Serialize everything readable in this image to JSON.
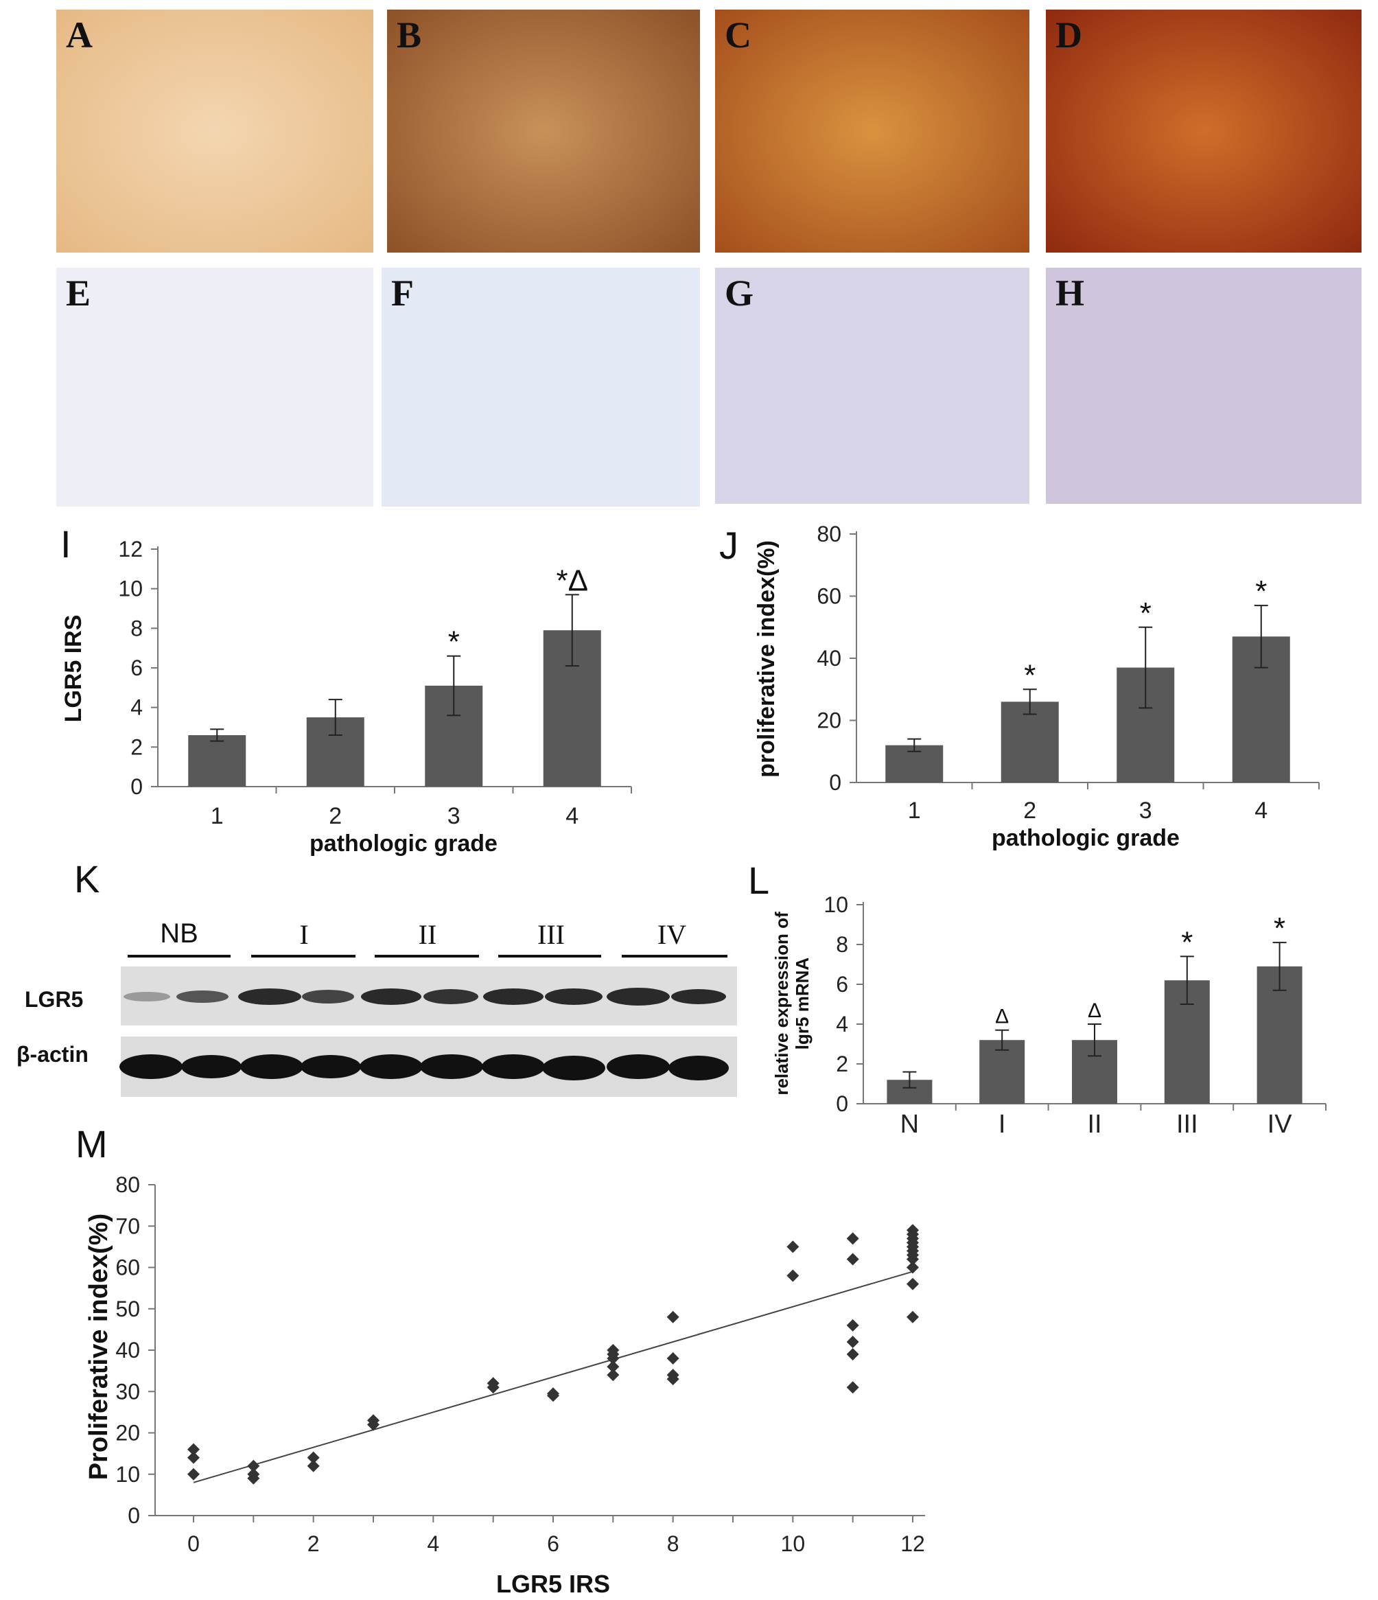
{
  "micrographs": {
    "top_row": [
      {
        "label": "A"
      },
      {
        "label": "B"
      },
      {
        "label": "C"
      },
      {
        "label": "D"
      }
    ],
    "bottom_row": [
      {
        "label": "E"
      },
      {
        "label": "F"
      },
      {
        "label": "G"
      },
      {
        "label": "H"
      }
    ]
  },
  "panel_letters": {
    "i": "I",
    "j": "J",
    "k": "K",
    "l": "L",
    "m": "M"
  },
  "western_blot": {
    "lane_groups": [
      "NB",
      "I",
      "II",
      "III",
      "IV"
    ],
    "rows": [
      "LGR5",
      "β-actin"
    ]
  },
  "chart_data": [
    {
      "panel": "I",
      "type": "bar",
      "categories": [
        "1",
        "2",
        "3",
        "4"
      ],
      "values": [
        2.6,
        3.5,
        5.1,
        7.9
      ],
      "errors": [
        0.3,
        0.9,
        1.5,
        1.8
      ],
      "annotations": [
        "",
        "",
        "*",
        "*Δ"
      ],
      "xlabel": "pathologic grade",
      "ylabel": "LGR5 IRS",
      "ylim": [
        0,
        12
      ],
      "yticks": [
        "0",
        "2",
        "4",
        "6",
        "8",
        "10",
        "12"
      ],
      "bar_color": "#595959"
    },
    {
      "panel": "J",
      "type": "bar",
      "categories": [
        "1",
        "2",
        "3",
        "4"
      ],
      "values": [
        12,
        26,
        37,
        47
      ],
      "errors": [
        2,
        4,
        13,
        10
      ],
      "annotations": [
        "",
        "*",
        "*",
        "*"
      ],
      "xlabel": "pathologic grade",
      "ylabel": "proliferative index(%)",
      "ylim": [
        0,
        80
      ],
      "yticks": [
        "0",
        "20",
        "40",
        "60",
        "80"
      ],
      "bar_color": "#595959"
    },
    {
      "panel": "L",
      "type": "bar",
      "categories": [
        "N",
        "I",
        "II",
        "III",
        "IV"
      ],
      "values": [
        1.2,
        3.2,
        3.2,
        6.2,
        6.9
      ],
      "errors": [
        0.4,
        0.5,
        0.8,
        1.2,
        1.2
      ],
      "annotations": [
        "",
        "Δ",
        "Δ",
        "*",
        "*"
      ],
      "xlabel": "",
      "ylabel_lines": [
        "relative expression of",
        "lgr5 mRNA"
      ],
      "ylim": [
        0,
        10
      ],
      "yticks": [
        "0",
        "2",
        "4",
        "6",
        "8",
        "10"
      ],
      "bar_color": "#595959"
    },
    {
      "panel": "M",
      "type": "scatter",
      "xlabel": "LGR5 IRS",
      "ylabel": "Proliferative index(%)",
      "xlim": [
        0,
        12
      ],
      "ylim": [
        0,
        80
      ],
      "xticks": [
        "0",
        "2",
        "4",
        "6",
        "8",
        "10",
        "12"
      ],
      "yticks": [
        "0",
        "10",
        "20",
        "30",
        "40",
        "50",
        "60",
        "70",
        "80"
      ],
      "points": [
        [
          0,
          10
        ],
        [
          0,
          14
        ],
        [
          0,
          16
        ],
        [
          1,
          9
        ],
        [
          1,
          10
        ],
        [
          1,
          12
        ],
        [
          2,
          12
        ],
        [
          2,
          14
        ],
        [
          3,
          22
        ],
        [
          3,
          23
        ],
        [
          5,
          31
        ],
        [
          5,
          32
        ],
        [
          6,
          29
        ],
        [
          6,
          29.5
        ],
        [
          7,
          34
        ],
        [
          7,
          36
        ],
        [
          7,
          38
        ],
        [
          7,
          39
        ],
        [
          7,
          40
        ],
        [
          8,
          33
        ],
        [
          8,
          34
        ],
        [
          8,
          38
        ],
        [
          8,
          48
        ],
        [
          10,
          58
        ],
        [
          10,
          65
        ],
        [
          11,
          31
        ],
        [
          11,
          39
        ],
        [
          11,
          42
        ],
        [
          11,
          46
        ],
        [
          11,
          62
        ],
        [
          11,
          67
        ],
        [
          12,
          48
        ],
        [
          12,
          56
        ],
        [
          12,
          60
        ],
        [
          12,
          62
        ],
        [
          12,
          63
        ],
        [
          12,
          64
        ],
        [
          12,
          65
        ],
        [
          12,
          66
        ],
        [
          12,
          67
        ],
        [
          12,
          68
        ],
        [
          12,
          69
        ]
      ],
      "trendline": [
        [
          0,
          8
        ],
        [
          12,
          59
        ]
      ]
    }
  ]
}
